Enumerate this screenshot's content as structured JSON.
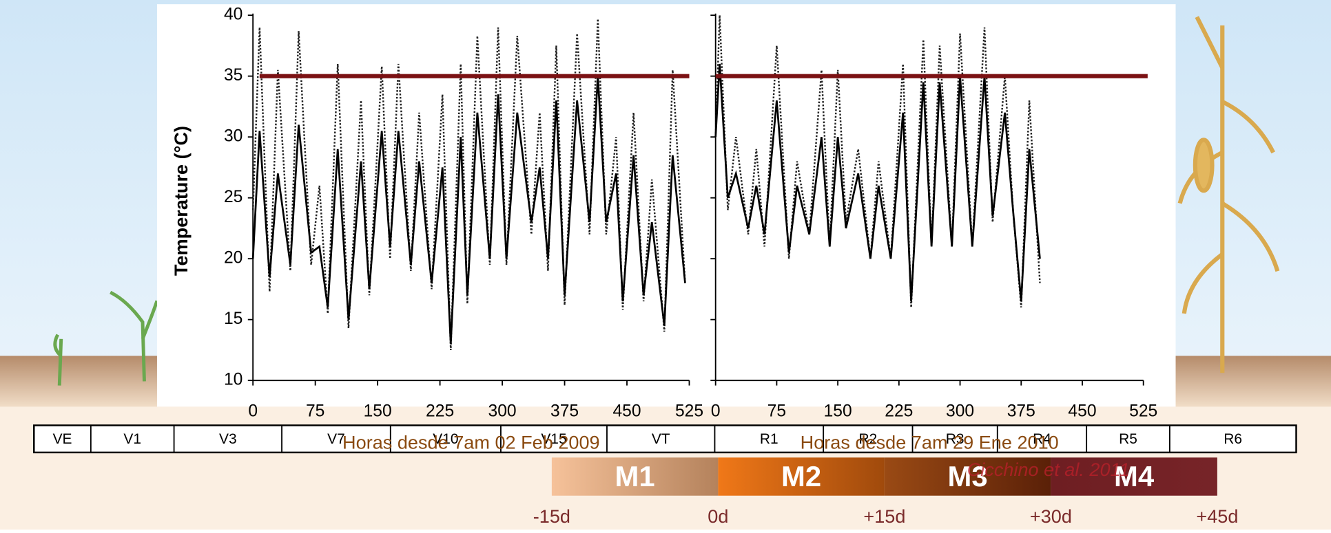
{
  "chart_data": [
    {
      "type": "line",
      "y_label": "Temperature (°C)",
      "x_label": "Horas desde 7am 02 Feb 2009",
      "xlim": [
        0,
        525
      ],
      "xticks": [
        0,
        75,
        150,
        225,
        300,
        375,
        450,
        525
      ],
      "ylim": [
        10,
        40
      ],
      "yticks": [
        10,
        15,
        20,
        25,
        30,
        35,
        40
      ],
      "ytick_labels": true,
      "threshold": 35,
      "threshold_color": "#7b1113",
      "x": [
        0,
        8,
        20,
        30,
        45,
        55,
        70,
        80,
        90,
        102,
        115,
        130,
        140,
        155,
        165,
        175,
        190,
        200,
        215,
        228,
        238,
        250,
        258,
        270,
        285,
        295,
        305,
        318,
        335,
        345,
        355,
        365,
        375,
        390,
        405,
        415,
        425,
        437,
        445,
        458,
        470,
        480,
        495,
        505,
        520
      ],
      "series": [
        {
          "style": "dotted",
          "color": "#222222",
          "values": [
            24,
            39,
            17.3,
            35.5,
            19,
            38.7,
            19.5,
            26,
            15.5,
            36,
            14.3,
            33,
            17,
            35.8,
            20,
            36,
            19,
            32,
            17.5,
            33.5,
            12.5,
            36,
            16.3,
            38.3,
            19.5,
            39,
            19.5,
            38.3,
            22,
            32,
            19,
            37.5,
            16.2,
            38.5,
            22,
            39.7,
            22,
            30,
            15.8,
            32,
            16.5,
            26.5,
            14,
            35.5,
            18
          ]
        },
        {
          "style": "solid",
          "color": "#000000",
          "values": [
            20,
            30.5,
            18.5,
            27,
            19.5,
            31,
            20.5,
            21,
            16,
            29,
            15,
            28,
            17.5,
            30.5,
            21,
            30.5,
            19.5,
            28,
            18,
            27.5,
            13,
            30,
            17,
            32,
            20,
            33.5,
            20,
            32,
            23,
            27.5,
            20,
            33,
            17,
            33,
            23,
            35,
            23,
            27,
            16.5,
            28.5,
            17,
            23,
            14.5,
            28.5,
            18
          ]
        }
      ]
    },
    {
      "type": "line",
      "x_label": "Horas desde 7am 29 Ene 2010",
      "xlim": [
        0,
        525
      ],
      "xticks": [
        0,
        75,
        150,
        225,
        300,
        375,
        450,
        525
      ],
      "ylim": [
        10,
        40
      ],
      "yticks": [
        10,
        15,
        20,
        25,
        30,
        35,
        40
      ],
      "ytick_labels": false,
      "threshold": 35,
      "threshold_color": "#7b1113",
      "x": [
        0,
        5,
        15,
        25,
        40,
        50,
        60,
        75,
        90,
        100,
        115,
        130,
        140,
        150,
        160,
        175,
        190,
        200,
        215,
        230,
        240,
        255,
        265,
        275,
        290,
        300,
        315,
        330,
        340,
        355,
        365,
        375,
        385,
        398
      ],
      "series": [
        {
          "style": "dotted",
          "color": "#222222",
          "values": [
            30,
            40,
            24,
            30,
            22,
            29,
            21,
            37.5,
            20,
            28,
            22,
            35.5,
            21,
            35.5,
            23,
            29,
            20,
            28,
            20,
            36,
            16,
            38,
            21,
            37.5,
            21,
            38.5,
            21,
            39,
            23,
            35,
            24,
            16,
            33,
            18
          ]
        },
        {
          "style": "solid",
          "color": "#000000",
          "values": [
            30,
            36,
            25,
            27,
            22.5,
            26,
            22,
            33,
            20.5,
            26,
            22,
            30,
            21,
            30,
            22.5,
            27,
            20,
            26,
            20,
            32,
            16.5,
            34.5,
            21,
            34.5,
            21,
            35,
            21,
            35,
            23.5,
            32,
            24,
            16.5,
            29,
            20
          ]
        }
      ]
    }
  ],
  "growth_stages": [
    "VE",
    "V1",
    "V3",
    "V7",
    "V10",
    "V15",
    "VT",
    "R1",
    "R2",
    "R3",
    "R4",
    "R5",
    "R6"
  ],
  "phases": [
    "M1",
    "M2",
    "M3",
    "M4"
  ],
  "day_marks": [
    "-15d",
    "0d",
    "+15d",
    "+30d",
    "+45d"
  ],
  "citation": "Cicchino et al. 2011"
}
